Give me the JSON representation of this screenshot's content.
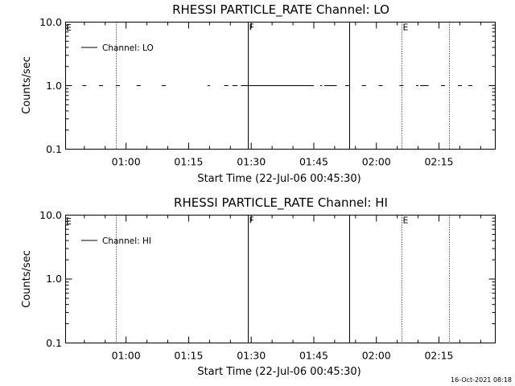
{
  "timestamp": "16-Oct-2021 08:18",
  "chart_data": [
    {
      "type": "line",
      "title": "RHESSI PARTICLE_RATE Channel: LO",
      "xlabel": "Start Time (22-Jul-06 00:45:30)",
      "ylabel": "Counts/sec",
      "y_scale": "log",
      "ylim": [
        0.1,
        10.0
      ],
      "ytick_labels": [
        "10.0",
        "1.0",
        "0.1"
      ],
      "xlim_minutes_from_start": [
        0,
        103
      ],
      "xtick_labels": [
        "01:00",
        "01:15",
        "01:30",
        "01:45",
        "02:00",
        "02:15"
      ],
      "xtick_minutes_from_start": [
        14.5,
        29.5,
        44.5,
        59.5,
        74.5,
        89.5
      ],
      "legend": {
        "label": "Channel: LO",
        "position": "top-left"
      },
      "series": [
        {
          "name": "Channel: LO",
          "segments": [
            {
              "x": [
                4.0,
                5.0
              ],
              "y": [
                1.0,
                1.0
              ]
            },
            {
              "x": [
                8.0,
                9.0
              ],
              "y": [
                1.0,
                1.0
              ]
            },
            {
              "x": [
                12.0,
                13.0
              ],
              "y": [
                1.0,
                1.0
              ]
            },
            {
              "x": [
                17.0,
                18.0
              ],
              "y": [
                1.0,
                1.0
              ]
            },
            {
              "x": [
                23.0,
                24.0
              ],
              "y": [
                1.0,
                1.0
              ]
            },
            {
              "x": [
                34.0,
                34.6
              ],
              "y": [
                1.0,
                1.0
              ]
            },
            {
              "x": [
                38.0,
                39.0
              ],
              "y": [
                1.0,
                1.0
              ]
            },
            {
              "x": [
                40.0,
                41.2
              ],
              "y": [
                1.0,
                1.0
              ]
            },
            {
              "x": [
                42.0,
                59.5
              ],
              "y": [
                1.0,
                1.0
              ]
            },
            {
              "x": [
                61.0,
                61.5
              ],
              "y": [
                1.0,
                1.0
              ]
            },
            {
              "x": [
                62.0,
                65.0
              ],
              "y": [
                1.0,
                1.0
              ]
            },
            {
              "x": [
                67.0,
                68.0
              ],
              "y": [
                1.0,
                1.0
              ]
            },
            {
              "x": [
                71.0,
                72.0
              ],
              "y": [
                1.0,
                1.0
              ]
            },
            {
              "x": [
                75.0,
                76.0
              ],
              "y": [
                1.0,
                1.0
              ]
            },
            {
              "x": [
                80.0,
                81.0
              ],
              "y": [
                1.0,
                1.0
              ]
            },
            {
              "x": [
                84.0,
                84.6
              ],
              "y": [
                1.0,
                1.0
              ]
            },
            {
              "x": [
                85.0,
                87.0
              ],
              "y": [
                1.0,
                1.0
              ]
            },
            {
              "x": [
                90.0,
                91.0
              ],
              "y": [
                1.0,
                1.0
              ]
            },
            {
              "x": [
                94.0,
                95.0
              ],
              "y": [
                1.0,
                1.0
              ]
            },
            {
              "x": [
                96.5,
                97.5
              ],
              "y": [
                1.0,
                1.0
              ]
            }
          ]
        }
      ],
      "vlines": [
        {
          "x": 12.0,
          "style": "dotted",
          "label": ""
        },
        {
          "x": 43.7,
          "style": "solid",
          "label": "F"
        },
        {
          "x": 68.0,
          "style": "solid",
          "label": ""
        },
        {
          "x": 80.5,
          "style": "dotted",
          "label": "E"
        },
        {
          "x": 92.0,
          "style": "dotted",
          "label": ""
        }
      ],
      "corner_label": "E"
    },
    {
      "type": "line",
      "title": "RHESSI PARTICLE_RATE Channel: HI",
      "xlabel": "Start Time (22-Jul-06 00:45:30)",
      "ylabel": "Counts/sec",
      "y_scale": "log",
      "ylim": [
        0.1,
        10.0
      ],
      "ytick_labels": [
        "10.0",
        "1.0",
        "0.1"
      ],
      "xlim_minutes_from_start": [
        0,
        103
      ],
      "xtick_labels": [
        "01:00",
        "01:15",
        "01:30",
        "01:45",
        "02:00",
        "02:15"
      ],
      "xtick_minutes_from_start": [
        14.5,
        29.5,
        44.5,
        59.5,
        74.5,
        89.5
      ],
      "legend": {
        "label": "Channel: HI",
        "position": "top-left"
      },
      "series": [
        {
          "name": "Channel: HI",
          "segments": []
        }
      ],
      "vlines": [
        {
          "x": 12.0,
          "style": "dotted",
          "label": ""
        },
        {
          "x": 43.7,
          "style": "solid",
          "label": "F"
        },
        {
          "x": 68.0,
          "style": "solid",
          "label": ""
        },
        {
          "x": 80.5,
          "style": "dotted",
          "label": "E"
        },
        {
          "x": 92.0,
          "style": "dotted",
          "label": ""
        }
      ],
      "corner_label": "E"
    }
  ]
}
